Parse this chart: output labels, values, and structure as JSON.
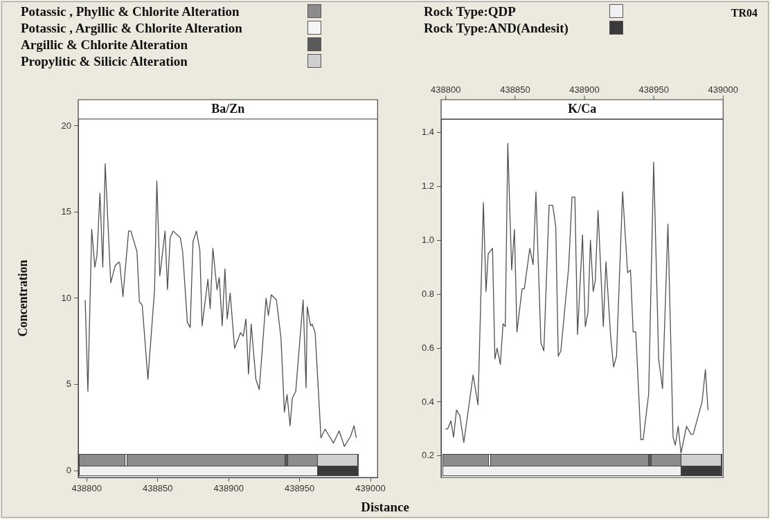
{
  "chart_data": [
    {
      "type": "line",
      "title": "Ba/Zn",
      "xlabel": "Distance",
      "ylabel": "Concentration",
      "annotations": [
        "Potassic , Phyllic & Chlorite Alteration",
        "Potassic , Argillic & Chlorite Alteration",
        "Argillic & Chlorite Alteration",
        "Propylitic & Silicic Alteration",
        "Rock Type:QDP",
        "Rock Type:AND(Andesit)",
        "TR04"
      ],
      "color": "#505050",
      "marker": "none",
      "line_style": "solid",
      "x": [
        438798.9,
        438800.8,
        438803.5,
        438805.7,
        438807.2,
        438809.3,
        438811.3,
        438813.0,
        438816.9,
        438820.1,
        438822.6,
        438823.3,
        438825.5,
        438829.5,
        438831.1,
        438835.4,
        438837.1,
        438839.1,
        438843.1,
        438847.8,
        438849.4,
        438851.5,
        438855.2,
        438856.9,
        438858.8,
        438860.9,
        438866.0,
        438867.6,
        438870.9,
        438872.9,
        438874.9,
        438877.3,
        438879.7,
        438881.3,
        438885.4,
        438887.0,
        438888.9,
        438891.8,
        438893.4,
        438895.5,
        438897.4,
        438899.0,
        438901.1,
        438904.2,
        438908.4,
        438910.3,
        438912.2,
        438914.0,
        438915.9,
        438919.2,
        438921.6,
        438926.4,
        438928.0,
        438930.1,
        438933.7,
        438936.9,
        438939.3,
        438941.2,
        438943.3,
        438944.9,
        438947.3,
        438952.5,
        438954.6,
        438955.4,
        438957.8,
        438958.9,
        438961.0,
        438965.1,
        438968.0,
        438973.9,
        438977.9,
        438981.6,
        438986.0,
        438988.4,
        438990.0
      ],
      "values": [
        9.9,
        4.6,
        14.0,
        11.8,
        12.5,
        16.1,
        11.8,
        17.8,
        10.9,
        11.9,
        12.1,
        12.0,
        10.1,
        13.9,
        13.9,
        12.7,
        9.8,
        9.6,
        5.3,
        10.5,
        16.8,
        11.3,
        13.9,
        10.5,
        13.5,
        13.9,
        13.5,
        12.7,
        8.6,
        8.3,
        13.3,
        13.9,
        12.8,
        8.4,
        11.1,
        9.4,
        12.9,
        10.5,
        11.2,
        8.4,
        11.7,
        8.8,
        10.3,
        7.1,
        8.0,
        7.8,
        8.8,
        5.6,
        8.5,
        5.3,
        4.7,
        10.0,
        9.0,
        10.2,
        9.9,
        7.7,
        3.4,
        4.4,
        2.6,
        4.2,
        4.6,
        9.9,
        4.8,
        9.5,
        8.4,
        8.5,
        8.0,
        1.9,
        2.4,
        1.6,
        2.3,
        1.4,
        2.0,
        2.6,
        1.9
      ],
      "xlim": [
        438794,
        439005
      ],
      "xticks": [
        438800,
        438850,
        438900,
        438950,
        439000
      ],
      "ylim": [
        -0.4,
        20.4
      ],
      "yticks": [
        0,
        5,
        10,
        15,
        20
      ]
    },
    {
      "type": "line",
      "title": "K/Ca",
      "color": "#505050",
      "marker": "none",
      "line_style": "solid",
      "x": [
        438799.7,
        438801.3,
        438803.7,
        438805.6,
        438807.7,
        438810.1,
        438813.0,
        438819.7,
        438823.2,
        438827.1,
        438829.0,
        438830.6,
        438833.7,
        438835.4,
        438837.0,
        438839.3,
        438841.3,
        438842.9,
        438844.7,
        438847.5,
        438849.5,
        438851.3,
        438855.0,
        438856.6,
        438860.6,
        438863.0,
        438865.0,
        438868.6,
        438870.7,
        438874.5,
        438877.1,
        438879.3,
        438881.1,
        438883.0,
        438888.6,
        438891.0,
        438893.1,
        438895.0,
        438898.6,
        438900.6,
        438902.5,
        438904.3,
        438906.3,
        438907.8,
        438909.8,
        438913.6,
        438915.5,
        438918.8,
        438921.0,
        438923.1,
        438927.5,
        438931.1,
        438933.2,
        438935.1,
        438937.0,
        438940.7,
        438942.3,
        438946.3,
        438949.9,
        438953.5,
        438956.3,
        438960.2,
        438963.9,
        438965.5,
        438967.6,
        438969.6,
        438973.6,
        438976.8,
        438978.4,
        438984.8,
        438987.2,
        438989.1
      ],
      "values": [
        0.3,
        0.3,
        0.33,
        0.27,
        0.37,
        0.35,
        0.25,
        0.5,
        0.39,
        1.14,
        0.81,
        0.95,
        0.97,
        0.56,
        0.6,
        0.54,
        0.69,
        0.68,
        1.36,
        0.89,
        1.04,
        0.66,
        0.82,
        0.82,
        0.97,
        0.91,
        1.18,
        0.62,
        0.59,
        1.13,
        1.13,
        1.05,
        0.57,
        0.59,
        0.9,
        1.16,
        1.16,
        0.65,
        1.02,
        0.68,
        0.73,
        1.0,
        0.81,
        0.85,
        1.11,
        0.68,
        0.92,
        0.65,
        0.53,
        0.57,
        1.18,
        0.88,
        0.89,
        0.66,
        0.66,
        0.26,
        0.26,
        0.43,
        1.29,
        0.56,
        0.45,
        1.06,
        0.27,
        0.24,
        0.31,
        0.21,
        0.31,
        0.28,
        0.28,
        0.4,
        0.52,
        0.37
      ],
      "xlim": [
        438796.6,
        439000
      ],
      "xticks": [
        438800,
        438850,
        438900,
        438950,
        439000
      ],
      "ylim": [
        0.12,
        1.45
      ],
      "yticks": [
        0.2,
        0.4,
        0.6,
        0.8,
        {
          "value": 1,
          "label": "1.0"
        },
        1.2,
        1.4
      ]
    }
  ]
}
